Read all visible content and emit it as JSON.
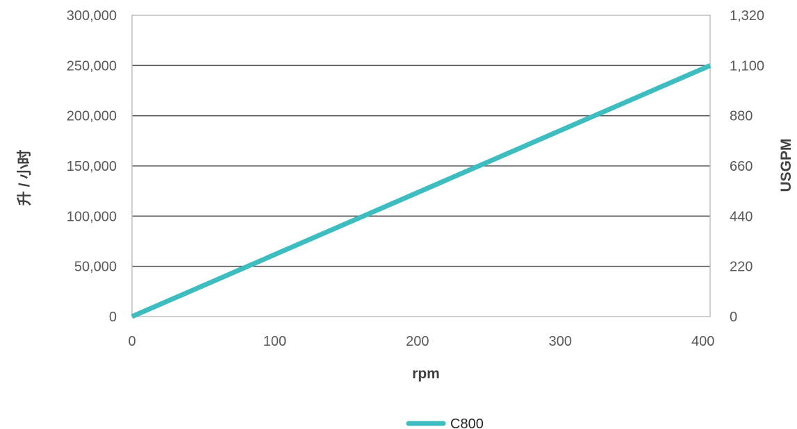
{
  "chart_data": {
    "type": "line",
    "xlabel": "rpm",
    "ylabel": "升 / 小时",
    "y2label": "USGPM",
    "xlim": [
      0,
      405
    ],
    "ylim": [
      0,
      300000
    ],
    "y2lim": [
      0,
      1320
    ],
    "x_ticks": [
      "0",
      "100",
      "200",
      "300",
      "400"
    ],
    "x_tick_values": [
      0,
      100,
      200,
      300,
      400
    ],
    "y_ticks": [
      "0",
      "50,000",
      "100,000",
      "150,000",
      "200,000",
      "250,000",
      "300,000"
    ],
    "y_tick_values": [
      0,
      50000,
      100000,
      150000,
      200000,
      250000,
      300000
    ],
    "y2_ticks": [
      "0",
      "220",
      "440",
      "660",
      "880",
      "1,100",
      "1,320"
    ],
    "grid": true,
    "legend": "bottom-center",
    "series": [
      {
        "name": "C800",
        "color": "#3dbdbf",
        "x": [
          0,
          405
        ],
        "y": [
          0,
          250000
        ]
      }
    ]
  },
  "colors": {
    "gridline": "#595959",
    "frame": "#bfbfbf",
    "series": "#3dbdbf"
  }
}
